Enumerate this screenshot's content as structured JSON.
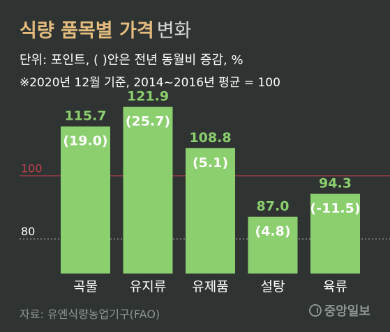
{
  "header": {
    "title": "식량 품목별 가격",
    "title_suffix": "변화",
    "subtitle_line1": "단위: 포인트, ( )안은 전년 동월비 증감, %",
    "subtitle_line2": "※2020년 12월 기준, 2014~2016년 평균 = 100"
  },
  "footer": {
    "source": "자료: 유엔식량농업기구(FAO)",
    "logo": "중앙일보"
  },
  "colors": {
    "background": "#2f3433",
    "bar": "#8ccf6e",
    "value_label": "#8ccf6e",
    "reference_line": "#c0404e",
    "title": "#e4bd7e"
  },
  "chart_data": {
    "type": "bar",
    "categories": [
      "곡물",
      "유지류",
      "유제품",
      "설탕",
      "육류"
    ],
    "values": [
      115.7,
      121.9,
      108.8,
      87.0,
      94.3
    ],
    "value_labels": [
      "115.7",
      "121.9",
      "108.8",
      "87.0",
      "94.3"
    ],
    "change_labels": [
      "(19.0)",
      "(25.7)",
      "(5.1)",
      "(4.8)",
      "(-11.5)"
    ],
    "reference_lines": [
      {
        "value": 100,
        "label": "100",
        "style": "solid"
      },
      {
        "value": 80,
        "label": "80",
        "style": "dotted"
      }
    ],
    "ylim": [
      69,
      126
    ]
  }
}
